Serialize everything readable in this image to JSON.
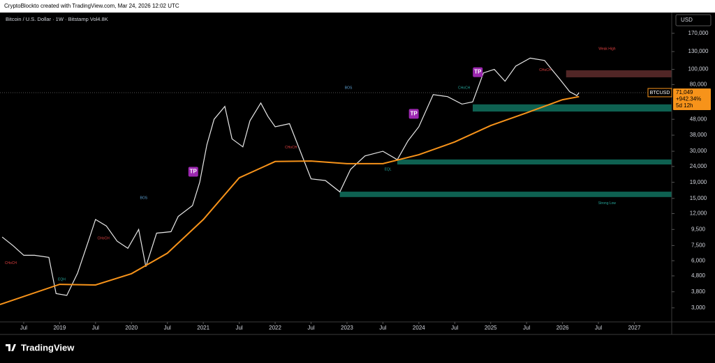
{
  "header": {
    "credit": "CryptoBlockto created with TradingView.com, Mar 24, 2026 12:02 UTC",
    "footer_logo": "TradingView"
  },
  "chart_data": {
    "type": "line",
    "title": "Bitcoin / U.S. Dollar · 1W · Bitstamp  Vol4.8K",
    "y_axis_label": "USD",
    "log_scale": true,
    "xlim": [
      2018.17,
      2027.52
    ],
    "ylim": [
      2440,
      226000
    ],
    "xticks": [
      {
        "value": 2018.5,
        "label": "Jul"
      },
      2019,
      {
        "value": 2019.5,
        "label": "Jul"
      },
      2020,
      {
        "value": 2020.5,
        "label": "Jul"
      },
      2021,
      {
        "value": 2021.5,
        "label": "Jul"
      },
      2022,
      {
        "value": 2022.5,
        "label": "Jul"
      },
      2023,
      {
        "value": 2023.5,
        "label": "Jul"
      },
      2024,
      {
        "value": 2024.5,
        "label": "Jul"
      },
      2025,
      {
        "value": 2025.5,
        "label": "Jul"
      },
      2026,
      {
        "value": 2026.5,
        "label": "Jul"
      },
      2027
    ],
    "yticks": [
      {
        "value": 3000,
        "label": "3,000"
      },
      {
        "value": 3800,
        "label": "3,800"
      },
      {
        "value": 4800,
        "label": "4,800"
      },
      {
        "value": 6000,
        "label": "6,000"
      },
      {
        "value": 7500,
        "label": "7,500"
      },
      {
        "value": 9500,
        "label": "9,500"
      },
      {
        "value": 12000,
        "label": "12,000"
      },
      {
        "value": 15000,
        "label": "15,000"
      },
      {
        "value": 19000,
        "label": "19,000"
      },
      {
        "value": 24000,
        "label": "24,000"
      },
      {
        "value": 30000,
        "label": "30,000"
      },
      {
        "value": 38000,
        "label": "38,000"
      },
      {
        "value": 48000,
        "label": "48,000"
      },
      {
        "value": 80000,
        "label": "80,000"
      },
      {
        "value": 100000,
        "label": "100,000"
      },
      {
        "value": 130000,
        "label": "130,000"
      },
      {
        "value": 170000,
        "label": "170,000"
      }
    ],
    "series": [
      {
        "name": "BTCUSD",
        "color": "#e8e8e8",
        "x": [
          2018.2,
          2018.35,
          2018.5,
          2018.65,
          2018.85,
          2018.95,
          2019.1,
          2019.25,
          2019.4,
          2019.5,
          2019.65,
          2019.8,
          2019.95,
          2020.1,
          2020.2,
          2020.35,
          2020.55,
          2020.65,
          2020.85,
          2020.95,
          2021.05,
          2021.15,
          2021.3,
          2021.4,
          2021.55,
          2021.65,
          2021.8,
          2021.9,
          2022.0,
          2022.2,
          2022.35,
          2022.5,
          2022.7,
          2022.9,
          2023.05,
          2023.25,
          2023.5,
          2023.7,
          2023.85,
          2024.0,
          2024.2,
          2024.4,
          2024.6,
          2024.75,
          2024.9,
          2025.05,
          2025.2,
          2025.35,
          2025.55,
          2025.75,
          2025.85,
          2025.95,
          2026.1,
          2026.2,
          2026.23
        ],
        "values": [
          8500,
          7500,
          6500,
          6500,
          6300,
          3700,
          3600,
          5000,
          8000,
          11000,
          10000,
          8000,
          7200,
          9500,
          5500,
          9000,
          9200,
          11500,
          13500,
          19000,
          33000,
          48000,
          58000,
          36000,
          32000,
          47000,
          61000,
          50000,
          43000,
          45000,
          30000,
          20000,
          19500,
          16500,
          23000,
          28000,
          30000,
          26500,
          35000,
          43000,
          69000,
          67000,
          60000,
          62000,
          95000,
          100000,
          84000,
          105000,
          118000,
          114000,
          100000,
          88000,
          72000,
          68000,
          71049
        ]
      },
      {
        "color": "#f7931a",
        "x": [
          2018.17,
          2019.0,
          2019.5,
          2020.0,
          2020.5,
          2021.0,
          2021.5,
          2022.0,
          2022.5,
          2023.0,
          2023.5,
          2024.0,
          2024.5,
          2025.0,
          2025.5,
          2026.0,
          2026.23
        ],
        "values": [
          3150,
          4240,
          4200,
          4960,
          6700,
          11000,
          20300,
          25800,
          26000,
          25000,
          25000,
          28500,
          34400,
          43800,
          52800,
          64000,
          67000
        ]
      }
    ],
    "last_price": {
      "symbol": "BTCUSD",
      "price": {
        "value": 71049,
        "label": "71,049"
      },
      "change": {
        "value": 942.34,
        "label": "+942.34%"
      },
      "countdown": "5d 12h",
      "color": "#f7931a"
    },
    "zones": [
      {
        "x": [
          2024.75,
          2027.52
        ],
        "y": [
          53800,
          59800
        ],
        "color": "#0f6b5a"
      },
      {
        "x": [
          2023.7,
          2027.52
        ],
        "y": [
          24700,
          26600
        ],
        "color": "#0f6b5a"
      },
      {
        "x": [
          2022.9,
          2027.52
        ],
        "y": [
          15300,
          16560
        ],
        "color": "#0f6b5a"
      },
      {
        "x": [
          2026.05,
          2027.52
        ],
        "y": [
          89000,
          98700
        ],
        "color": "#5a2a2a"
      }
    ],
    "annotations": [
      {
        "text": "BOS",
        "x": 2020.17,
        "y": 15100,
        "color": "#5ea4d8"
      },
      {
        "text": "BOS",
        "x": 2023.02,
        "y": 76300,
        "color": "#5ea4d8"
      },
      {
        "text": "Weak High",
        "x": 2026.62,
        "y": 135500,
        "color": "#e04040"
      },
      {
        "text": "Strong Low",
        "x": 2026.62,
        "y": 14000,
        "color": "#26a69a"
      },
      {
        "text": "CHoCH",
        "x": 2018.32,
        "y": 5800,
        "color": "#e04040"
      },
      {
        "text": "CHoCH",
        "x": 2019.61,
        "y": 8325,
        "color": "#e04040"
      },
      {
        "text": "CHoCH",
        "x": 2022.22,
        "y": 31700,
        "color": "#e04040"
      },
      {
        "text": "CHoCH",
        "x": 2024.63,
        "y": 76300,
        "color": "#26a69a"
      },
      {
        "text": "CHoCH",
        "x": 2025.76,
        "y": 98700,
        "color": "#e04040"
      },
      {
        "text": "EQL",
        "x": 2023.57,
        "y": 23000,
        "color": "#26a69a"
      },
      {
        "text": "EQH",
        "x": 2019.03,
        "y": 4560,
        "color": "#26a69a"
      },
      {
        "text": "TP",
        "x": 2020.86,
        "y": 22200,
        "color": "#ffffff",
        "background": "#9c27b0"
      },
      {
        "text": "TP",
        "x": 2023.93,
        "y": 52000,
        "color": "#ffffff",
        "background": "#9c27b0"
      },
      {
        "text": "TP",
        "x": 2024.82,
        "y": 96000,
        "color": "#ffffff",
        "background": "#9c27b0"
      }
    ]
  }
}
